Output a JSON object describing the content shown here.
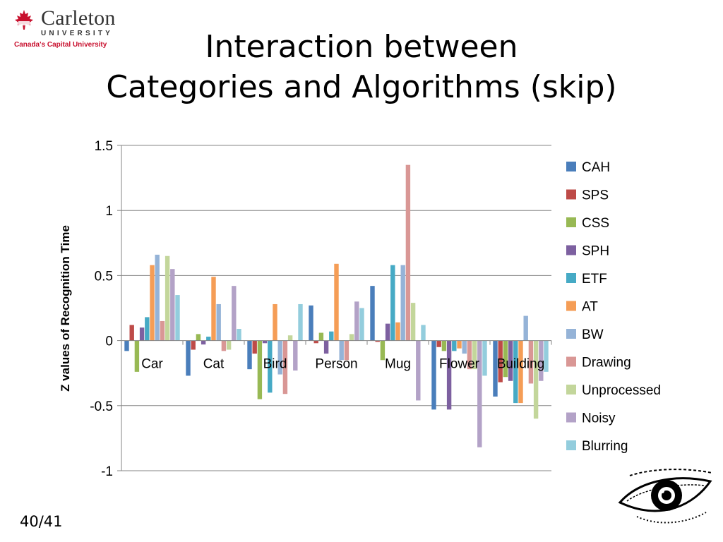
{
  "logo": {
    "name": "Carleton",
    "university": "UNIVERSITY",
    "tagline": "Canada's Capital University"
  },
  "slide": {
    "title_line1": "Interaction between",
    "title_line2": "Categories and Algorithms (skip)",
    "page_number": "40/41"
  },
  "chart_data": {
    "type": "bar",
    "title": "",
    "ylabel": "Z values of Recognition Time",
    "xlabel": "",
    "ylim": [
      -1,
      1.5
    ],
    "yticks": [
      1.5,
      1,
      0.5,
      0,
      -0.5,
      -1
    ],
    "ytick_labels": [
      "1.5",
      "1",
      "0.5",
      "0",
      "-0.5",
      "-1"
    ],
    "grid": true,
    "legend_position": "right",
    "categories": [
      "Car",
      "Cat",
      "Bird",
      "Person",
      "Mug",
      "Flower",
      "Building"
    ],
    "series": [
      {
        "name": "CAH",
        "color": "#4a7ebb",
        "values": [
          -0.08,
          -0.27,
          -0.22,
          0.27,
          0.42,
          -0.53,
          -0.43
        ]
      },
      {
        "name": "SPS",
        "color": "#be4b48",
        "values": [
          0.12,
          -0.07,
          -0.1,
          -0.02,
          -0.01,
          -0.05,
          -0.32
        ]
      },
      {
        "name": "CSS",
        "color": "#98b954",
        "values": [
          -0.24,
          0.05,
          -0.45,
          0.06,
          -0.15,
          -0.08,
          -0.28
        ]
      },
      {
        "name": "SPH",
        "color": "#7d60a0",
        "values": [
          0.1,
          -0.03,
          -0.02,
          -0.1,
          0.13,
          -0.53,
          -0.31
        ]
      },
      {
        "name": "ETF",
        "color": "#46aac5",
        "values": [
          0.18,
          0.03,
          -0.4,
          0.07,
          0.58,
          -0.08,
          -0.48
        ]
      },
      {
        "name": "AT",
        "color": "#f59d56",
        "values": [
          0.58,
          0.49,
          0.28,
          0.59,
          0.14,
          -0.06,
          -0.48
        ]
      },
      {
        "name": "BW",
        "color": "#95b3d7",
        "values": [
          0.66,
          0.28,
          -0.26,
          -0.15,
          0.58,
          -0.1,
          0.19
        ]
      },
      {
        "name": "Drawing",
        "color": "#d99795",
        "values": [
          0.15,
          -0.08,
          -0.41,
          -0.15,
          1.35,
          -0.22,
          -0.33
        ]
      },
      {
        "name": "Unprocessed",
        "color": "#c3d69b",
        "values": [
          0.65,
          -0.07,
          0.04,
          0.05,
          0.29,
          -0.22,
          -0.6
        ]
      },
      {
        "name": "Noisy",
        "color": "#b3a2c7",
        "values": [
          0.55,
          0.42,
          -0.23,
          0.3,
          -0.46,
          -0.82,
          -0.31
        ]
      },
      {
        "name": "Blurring",
        "color": "#93cddd",
        "values": [
          0.35,
          0.09,
          0.28,
          0.25,
          0.12,
          -0.27,
          -0.24
        ]
      }
    ]
  }
}
